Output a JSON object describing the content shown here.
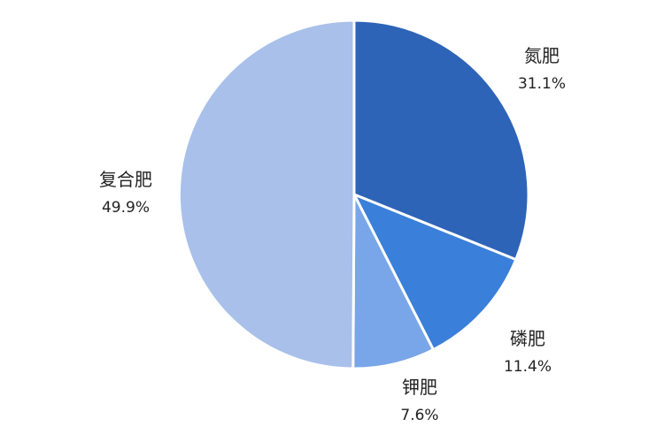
{
  "chart_data": {
    "type": "pie",
    "title": "",
    "categories": [
      "氮肥",
      "磷肥",
      "钾肥",
      "复合肥"
    ],
    "values": [
      31.1,
      11.4,
      7.6,
      49.9
    ],
    "value_labels": [
      "31.1%",
      "11.4%",
      "7.6%",
      "49.9%"
    ],
    "start": "12 o'clock",
    "direction": "clockwise",
    "legend": "none",
    "colors": [
      "#2e64b8",
      "#3a7fd9",
      "#79a6e8",
      "#a8c0ea"
    ]
  }
}
